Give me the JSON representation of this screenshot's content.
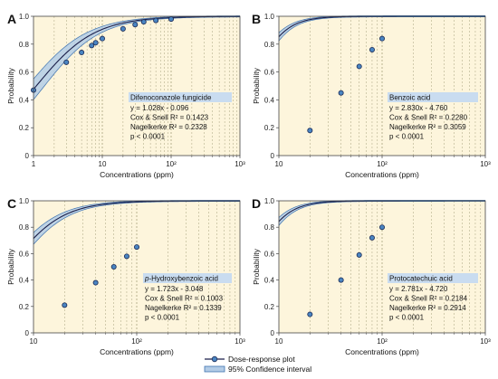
{
  "colors": {
    "plot_bg": "#fdf5dc",
    "grid": "#a8a27e",
    "band_fill": "#b3cce6",
    "band_edge": "#3f73b0",
    "curve": "#1b1f4a",
    "marker_fill": "#4a85c2",
    "marker_edge": "#1b2a55",
    "title_bg": "#c9dcf0"
  },
  "legend": {
    "dose_response_label": "Dose-response plot",
    "ci_label": "95% Confidence interval"
  },
  "chart_data": [
    {
      "type": "line",
      "panel_label": "A",
      "xlabel": "Concentrations (ppm)",
      "ylabel": "Probability",
      "x_scale": "log",
      "xlim": [
        1,
        1000
      ],
      "ylim": [
        0,
        1.0
      ],
      "xticks": [
        1,
        10,
        100,
        1000
      ],
      "xtick_labels": [
        "1",
        "10",
        "10²",
        "10³"
      ],
      "yticks": [
        0,
        0.2,
        0.4,
        0.6,
        0.8,
        1.0
      ],
      "ytick_labels": [
        "0",
        "0.2",
        "0.4",
        "0.6",
        "0.8",
        "1.0"
      ],
      "grid": "vertical dashed",
      "model": {
        "slope": 1.028,
        "intercept": -0.096
      },
      "ci_width": [
        0.07,
        0.012
      ],
      "points": {
        "x": [
          1,
          3,
          5,
          7,
          8,
          10,
          20,
          30,
          40,
          60,
          100
        ],
        "y": [
          0.47,
          0.67,
          0.74,
          0.79,
          0.81,
          0.84,
          0.91,
          0.94,
          0.96,
          0.97,
          0.98
        ]
      },
      "annotation": {
        "title": "Difenoconazole fungicide",
        "lines": [
          "y = 1.028x - 0.096",
          "Cox & Snell R² = 0.1423",
          "Nagelkerke R² = 0.2328",
          "p < 0.0001"
        ]
      }
    },
    {
      "type": "line",
      "panel_label": "B",
      "xlabel": "Concentrations (ppm)",
      "ylabel": "Probability",
      "x_scale": "log",
      "xlim": [
        10,
        1000
      ],
      "ylim": [
        0,
        1.0
      ],
      "xticks": [
        10,
        100,
        1000
      ],
      "xtick_labels": [
        "10",
        "10²",
        "10³"
      ],
      "yticks": [
        0,
        0.2,
        0.4,
        0.6,
        0.8,
        1.0
      ],
      "ytick_labels": [
        "0",
        "0.2",
        "0.4",
        "0.6",
        "0.8",
        "1.0"
      ],
      "grid": "vertical dashed",
      "model": {
        "slope": 2.83,
        "intercept": -4.76
      },
      "ci_width": [
        0.05,
        0.03
      ],
      "points": {
        "x": [
          20,
          40,
          60,
          80,
          100
        ],
        "y": [
          0.18,
          0.45,
          0.64,
          0.76,
          0.84
        ]
      },
      "annotation": {
        "title": "Benzoic acid",
        "lines": [
          "y = 2.830x - 4.760",
          "Cox & Snell R² = 0.2280",
          "Nagelkerke R² = 0.3059",
          "p < 0.0001"
        ]
      }
    },
    {
      "type": "line",
      "panel_label": "C",
      "xlabel": "Concentrations (ppm)",
      "ylabel": "Probability",
      "x_scale": "log",
      "xlim": [
        10,
        1000
      ],
      "ylim": [
        0,
        1.0
      ],
      "xticks": [
        10,
        100,
        1000
      ],
      "xtick_labels": [
        "10",
        "10²",
        "10³"
      ],
      "yticks": [
        0,
        0.2,
        0.4,
        0.6,
        0.8,
        1.0
      ],
      "ytick_labels": [
        "0",
        "0.2",
        "0.4",
        "0.6",
        "0.8",
        "1.0"
      ],
      "grid": "vertical dashed",
      "model": {
        "slope": 1.723,
        "intercept": -3.048
      },
      "ci_width": [
        0.05,
        0.035
      ],
      "points": {
        "x": [
          20,
          40,
          60,
          80,
          100
        ],
        "y": [
          0.21,
          0.38,
          0.5,
          0.58,
          0.65
        ]
      },
      "annotation": {
        "title": "p-Hydroxybenzoic acid",
        "title_italic_prefix": "p",
        "title_rest": "-Hydroxybenzoic acid",
        "lines": [
          "y = 1.723x - 3.048",
          "Cox & Snell R² = 0.1003",
          "Nagelkerke R² = 0.1339",
          "p < 0.0001"
        ]
      }
    },
    {
      "type": "line",
      "panel_label": "D",
      "xlabel": "Concentrations (ppm)",
      "ylabel": "Probability",
      "x_scale": "log",
      "xlim": [
        10,
        1000
      ],
      "ylim": [
        0,
        1.0
      ],
      "xticks": [
        10,
        100,
        1000
      ],
      "xtick_labels": [
        "10",
        "10²",
        "10³"
      ],
      "yticks": [
        0,
        0.2,
        0.4,
        0.6,
        0.8,
        1.0
      ],
      "ytick_labels": [
        "0",
        "0.2",
        "0.4",
        "0.6",
        "0.8",
        "1.0"
      ],
      "grid": "vertical dashed",
      "model": {
        "slope": 2.781,
        "intercept": -4.72
      },
      "ci_width": [
        0.05,
        0.03
      ],
      "points": {
        "x": [
          20,
          40,
          60,
          80,
          100
        ],
        "y": [
          0.14,
          0.4,
          0.59,
          0.72,
          0.8
        ]
      },
      "annotation": {
        "title": "Protocatechuic acid",
        "lines": [
          "y = 2.781x - 4.720",
          "Cox & Snell R² = 0.2184",
          "Nagelkerke R² = 0.2914",
          "p < 0.0001"
        ]
      }
    }
  ]
}
